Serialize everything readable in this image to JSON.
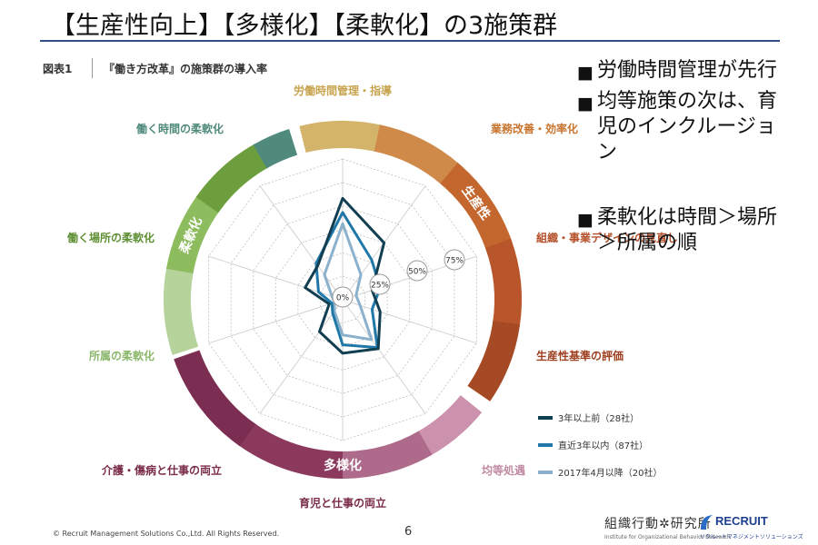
{
  "slide": {
    "title": "【生産性向上】【多様化】【柔軟化】の3施策群",
    "bullets": [
      "労働時間管理が先行",
      "均等施策の次は、育児のインクルージョン",
      "柔軟化は時間＞場所＞所属の順"
    ],
    "bullet_marker": "■"
  },
  "figure": {
    "label": "図表1",
    "caption": "『働き方改革』の施策群の導入率"
  },
  "chart_data": {
    "type": "radar",
    "axes": [
      "労働時間管理・指導",
      "業務改善・効率化",
      "組織・事業デザインの見直し",
      "生産性基準の評価",
      "均等処遇",
      "育児と仕事の両立",
      "介護・傷病と仕事の両立",
      "所属の柔軟化",
      "働く場所の柔軟化",
      "働く時間の柔軟化"
    ],
    "ticks": [
      "0%",
      "25%",
      "50%",
      "75%"
    ],
    "max": 100,
    "groups": [
      {
        "name": "生産性",
        "color": "#b9552a"
      },
      {
        "name": "多様化",
        "color": "#8b3a5e"
      },
      {
        "name": "柔軟化",
        "color": "#6c9e3e"
      }
    ],
    "series": [
      {
        "name": "3年以上前（28社）",
        "color": "#123e52",
        "values": [
          72,
          50,
          22,
          28,
          43,
          38,
          28,
          10,
          28,
          30
        ]
      },
      {
        "name": "直近3年以内（87社）",
        "color": "#1f78a8",
        "values": [
          62,
          35,
          28,
          22,
          42,
          32,
          12,
          8,
          18,
          32
        ]
      },
      {
        "name": "2017年4月以降（20社）",
        "color": "#8cb1cc",
        "values": [
          54,
          22,
          10,
          13,
          35,
          25,
          10,
          6,
          8,
          22
        ]
      }
    ]
  },
  "footer": {
    "copyright": "© Recruit Management Solutions Co.,Ltd. All Rights Reserved.",
    "page": "6",
    "org_name": "組織行動✲研究所",
    "org_sub": "Institute for Organizational Behavior Research",
    "brand": "RECRUIT",
    "brand_sub": "リクルートマネジメントソリューションズ"
  },
  "colors": {
    "title_rule": "#2e4f86",
    "brand": "#1d3f8f"
  }
}
